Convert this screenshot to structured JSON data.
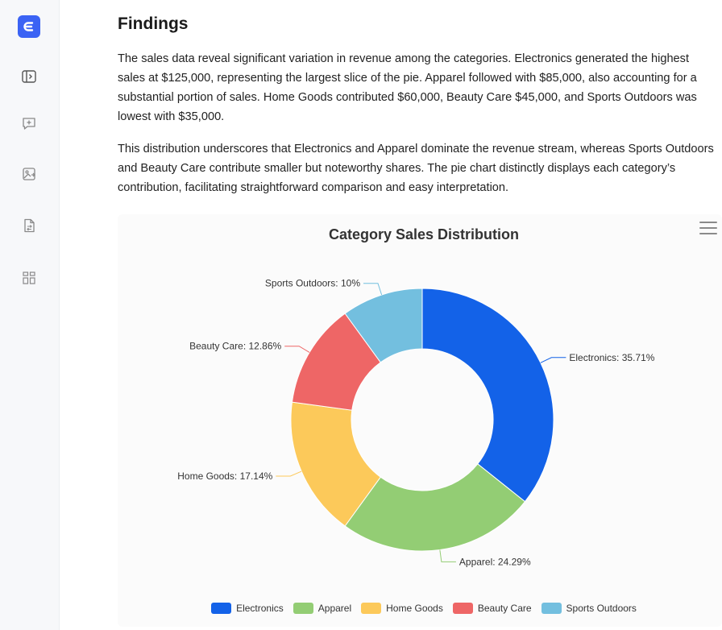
{
  "sidebar": {
    "logo_icon": "e-logo-icon",
    "items": [
      {
        "name": "panel-toggle-icon"
      },
      {
        "name": "new-chat-icon"
      },
      {
        "name": "image-tool-icon"
      },
      {
        "name": "file-convert-icon"
      },
      {
        "name": "apps-icon"
      }
    ]
  },
  "content": {
    "heading": "Findings",
    "paragraph1": "The sales data reveal significant variation in revenue among the categories. Electronics generated the highest sales at $125,000, representing the largest slice of the pie. Apparel followed with $85,000, also accounting for a substantial portion of sales. Home Goods contributed $60,000, Beauty Care $45,000, and Sports Outdoors was lowest with $35,000.",
    "paragraph2": "This distribution underscores that Electronics and Apparel dominate the revenue stream, whereas Sports Outdoors and Beauty Care contribute smaller but noteworthy shares. The pie chart distinctly displays each category’s contribution, facilitating straightforward comparison and easy interpretation."
  },
  "chart_data": {
    "type": "pie",
    "title": "Category Sales Distribution",
    "donut": true,
    "categories": [
      "Electronics",
      "Apparel",
      "Home Goods",
      "Beauty Care",
      "Sports Outdoors"
    ],
    "values": [
      125000,
      85000,
      60000,
      45000,
      35000
    ],
    "percent_labels": [
      "Electronics: 35.71%",
      "Apparel: 24.29%",
      "Home Goods: 17.14%",
      "Beauty Care: 12.86%",
      "Sports Outdoors: 10%"
    ],
    "colors": [
      "#1362e8",
      "#93cd74",
      "#fcc95a",
      "#ee6666",
      "#73bfdf"
    ],
    "legend_position": "bottom"
  }
}
